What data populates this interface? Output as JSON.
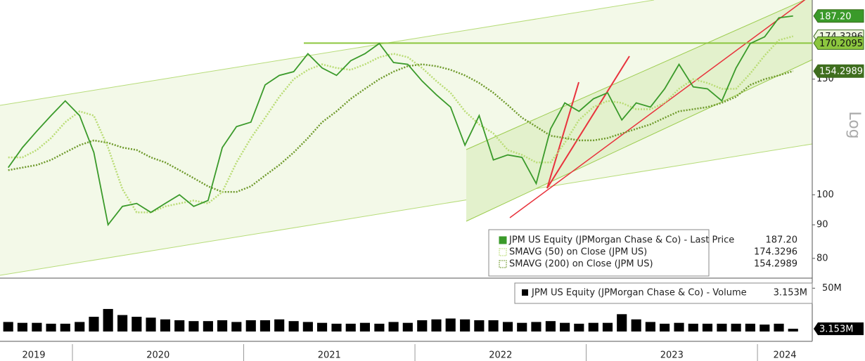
{
  "chart_data": {
    "type": "line",
    "x": [
      2019.625,
      2019.708,
      2019.792,
      2019.875,
      2019.958,
      2020.042,
      2020.125,
      2020.208,
      2020.292,
      2020.375,
      2020.458,
      2020.542,
      2020.625,
      2020.708,
      2020.792,
      2020.875,
      2020.958,
      2021.042,
      2021.125,
      2021.208,
      2021.292,
      2021.375,
      2021.458,
      2021.542,
      2021.625,
      2021.708,
      2021.792,
      2021.875,
      2021.958,
      2022.042,
      2022.125,
      2022.208,
      2022.292,
      2022.375,
      2022.458,
      2022.542,
      2022.625,
      2022.708,
      2022.792,
      2022.875,
      2022.958,
      2023.042,
      2023.125,
      2023.208,
      2023.292,
      2023.375,
      2023.458,
      2023.542,
      2023.625,
      2023.708,
      2023.792,
      2023.875,
      2023.958,
      2024.042,
      2024.125,
      2024.208
    ],
    "xlim": [
      2019.577,
      2024.32
    ],
    "xticks": [
      2020,
      2021,
      2022,
      2023,
      2024
    ],
    "year_labels": [
      "2019",
      "2020",
      "2021",
      "2022",
      "2023",
      "2024"
    ],
    "log_scale": true,
    "y_axis_label": "Log",
    "ylim": [
      75.2,
      198
    ],
    "yticks": [
      80,
      90,
      100,
      150
    ],
    "series": [
      {
        "name": "JPM US Equity (JPMorgan Chase & Co) - Last Price",
        "color": "#3a9a2a",
        "last_label": "187.20",
        "values": [
          110,
          118,
          125,
          132,
          139,
          132,
          116,
          90,
          96,
          97,
          94,
          97,
          100,
          96,
          98,
          118,
          127,
          129,
          147,
          152,
          154,
          164,
          156,
          152,
          160,
          164,
          170,
          159,
          158,
          149,
          142,
          136,
          119,
          132,
          113,
          115,
          114,
          104,
          126,
          138,
          134,
          140,
          143,
          130,
          138,
          136,
          145,
          158,
          146,
          145,
          139,
          156,
          170,
          174,
          186,
          187.2
        ]
      },
      {
        "name": "SMAVG (50)  on Close (JPM US)",
        "color": "#b9dc74",
        "values": [
          114,
          114,
          117,
          122,
          129,
          134,
          132,
          118,
          102,
          94,
          94,
          96,
          97,
          98,
          97,
          101,
          112,
          122,
          131,
          141,
          150,
          155,
          158,
          156,
          155,
          158,
          162,
          164,
          162,
          156,
          149,
          143,
          134,
          128,
          124,
          117,
          115,
          112,
          112,
          120,
          130,
          136,
          139,
          138,
          135,
          135,
          138,
          145,
          150,
          148,
          145,
          145,
          153,
          163,
          172,
          174.3296
        ]
      },
      {
        "name": "SMAVG (200)  on Close (JPM US)",
        "color": "#6f9a2c",
        "values": [
          109,
          110,
          111,
          113,
          116,
          119,
          121,
          120,
          118,
          117,
          114,
          112,
          109,
          106,
          103,
          101,
          101,
          103,
          107,
          111,
          116,
          122,
          129,
          134,
          140,
          145,
          150,
          154,
          157,
          158,
          157,
          155,
          152,
          148,
          143,
          137,
          131,
          127,
          123,
          122,
          121,
          121,
          122,
          124,
          126,
          128,
          131,
          134,
          135,
          136,
          138,
          141,
          147,
          150,
          152,
          154.2989
        ]
      }
    ],
    "level": 170.2095,
    "volume": {
      "name": "JPM US Equity (JPMorgan Chase & Co) - Volume",
      "color": "#000000",
      "last_label": "3.153M",
      "ylim": [
        0,
        60
      ],
      "yticks": [
        {
          "value": 50,
          "label": "50M"
        }
      ],
      "values": [
        11,
        10,
        10,
        9,
        9,
        11,
        17,
        26,
        19,
        17,
        16,
        14,
        13,
        12,
        12,
        13,
        11,
        13,
        13,
        14,
        12,
        11,
        10,
        9,
        9,
        10,
        9,
        11,
        10,
        13,
        14,
        15,
        14,
        13,
        13,
        11,
        10,
        11,
        12,
        10,
        9,
        10,
        10,
        20,
        14,
        11,
        9,
        10,
        9,
        9,
        9,
        9,
        9,
        8,
        9,
        3.153
      ]
    }
  }
}
